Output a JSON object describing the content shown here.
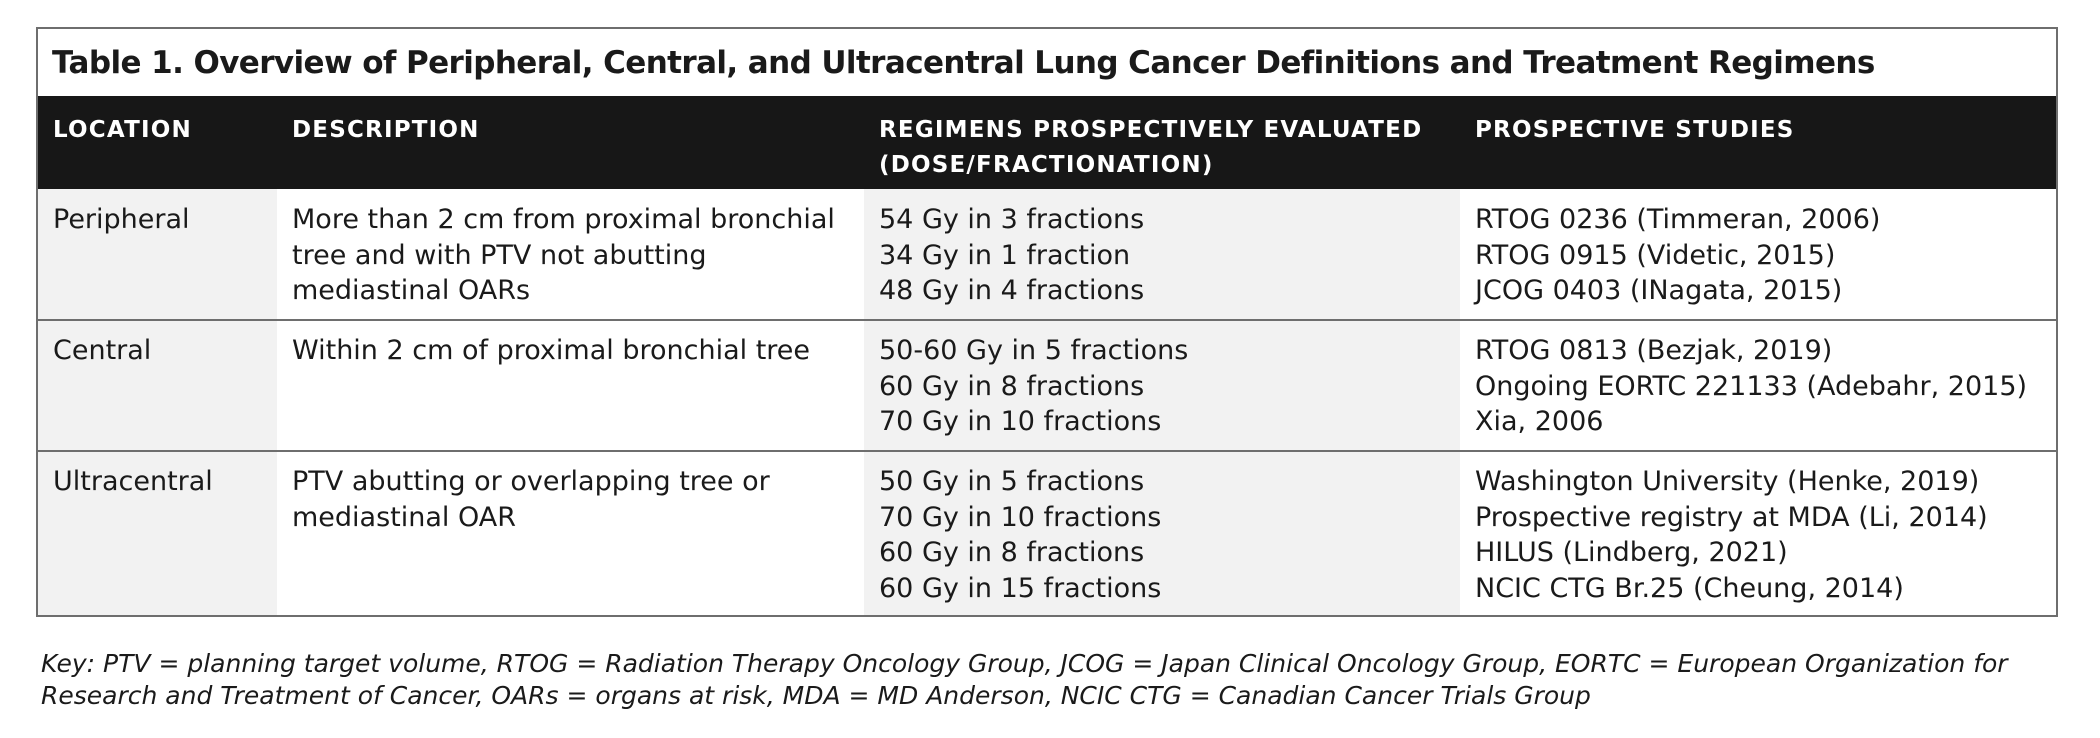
{
  "title": "Table 1. Overview of Peripheral, Central, and Ultracentral Lung Cancer Definitions and Treatment Regimens",
  "headers": {
    "location": "LOCATION",
    "description": "DESCRIPTION",
    "regimens": "REGIMENS PROSPECTIVELY EVALUATED\n(DOSE/FRACTIONATION)",
    "studies": "PROSPECTIVE STUDIES"
  },
  "rows": [
    {
      "location": "Peripheral",
      "description": "More than 2 cm from proximal bronchial\ntree and with PTV not abutting\nmediastinal OARs",
      "regimens": "54 Gy in 3 fractions\n34 Gy in 1 fraction\n48 Gy in 4 fractions",
      "studies": "RTOG 0236 (Timmeran, 2006)\nRTOG 0915 (Videtic, 2015)\nJCOG 0403 (INagata, 2015)"
    },
    {
      "location": "Central",
      "description": "Within 2 cm of proximal bronchial tree",
      "regimens": "50-60 Gy in 5 fractions\n60 Gy in 8 fractions\n70 Gy in 10 fractions",
      "studies": "RTOG 0813 (Bezjak, 2019)\nOngoing EORTC 221133 (Adebahr, 2015)\nXia, 2006"
    },
    {
      "location": "Ultracentral",
      "description": "PTV abutting or overlapping tree or\nmediastinal OAR",
      "regimens": "50 Gy in 5 fractions\n70 Gy in 10 fractions\n60 Gy in 8 fractions\n60 Gy in 15 fractions",
      "studies": "Washington University (Henke, 2019)\nProspective registry at MDA (Li, 2014)\nHILUS (Lindberg, 2021)\nNCIC CTG Br.25 (Cheung, 2014)"
    }
  ],
  "key": "Key: PTV = planning target volume, RTOG = Radiation Therapy Oncology Group, JCOG = Japan Clinical Oncology Group, EORTC = European Organization for Research and Treatment of Cancer, OARs = organs at risk, MDA = MD Anderson, NCIC CTG = Canadian Cancer Trials Group"
}
